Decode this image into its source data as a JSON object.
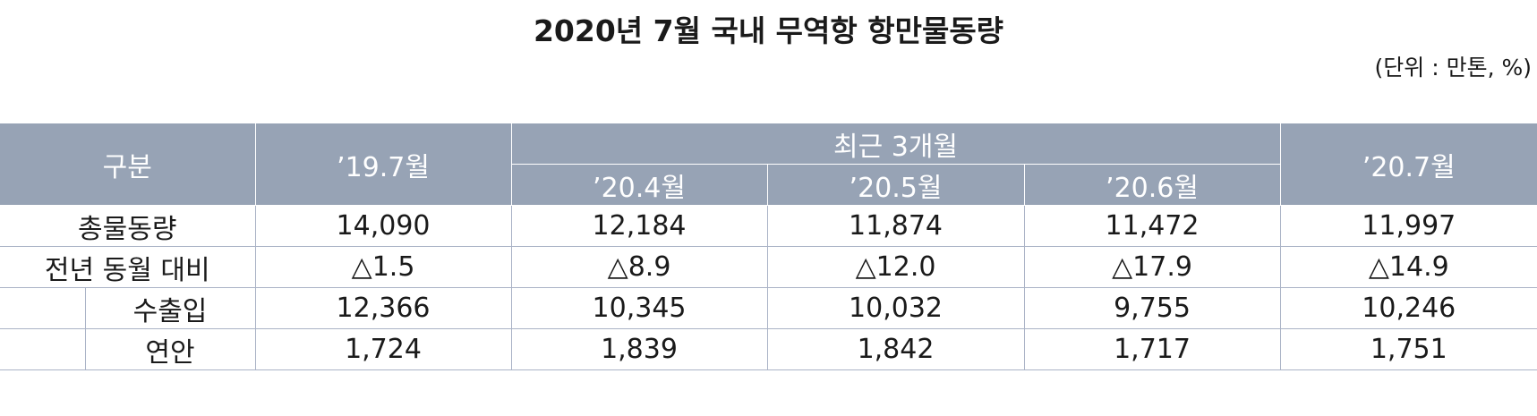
{
  "title": "2020년 7월 국내 무역항 항만물동량",
  "unit": "(단위 : 만톤, %)",
  "table": {
    "header": {
      "category": "구분",
      "prev_year": "’19.7월",
      "recent_group": "최근 3개월",
      "recent": [
        "’20.4월",
        "’20.5월",
        "’20.6월"
      ],
      "current": "’20.7월"
    },
    "rows": [
      {
        "label": "총물동량",
        "values": [
          "14,090",
          "12,184",
          "11,874",
          "11,472",
          "11,997"
        ]
      },
      {
        "label": "전년 동월 대비",
        "values": [
          "△1.5",
          "△8.9",
          "△12.0",
          "△17.9",
          "△14.9"
        ]
      },
      {
        "label": "수출입",
        "values": [
          "12,366",
          "10,345",
          "10,032",
          "9,755",
          "10,246"
        ]
      },
      {
        "label": "연안",
        "values": [
          "1,724",
          "1,839",
          "1,842",
          "1,717",
          "1,751"
        ]
      }
    ]
  }
}
